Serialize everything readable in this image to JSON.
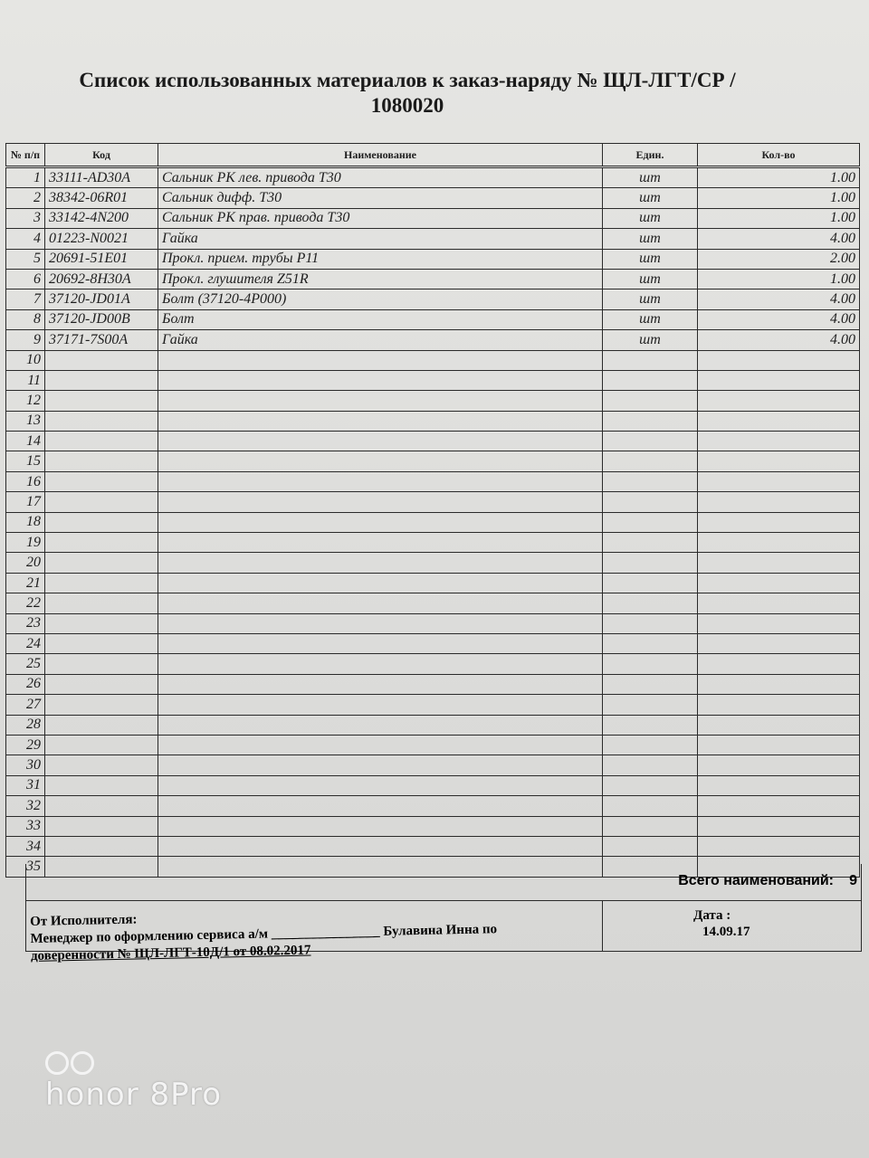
{
  "title_line1": "Список использованных материалов к заказ-наряду № ЩЛ-ЛГТ/СР /",
  "title_line2": "1080020",
  "columns": [
    "№ п/п",
    "Код",
    "Наименование",
    "Един.",
    "Кол-во"
  ],
  "items": [
    {
      "n": "1",
      "code": "33111-AD30A",
      "name": "Сальник РК лев. привода Т30",
      "unit": "шт",
      "qty": "1.00"
    },
    {
      "n": "2",
      "code": "38342-06R01",
      "name": "Сальник дифф. Т30",
      "unit": "шт",
      "qty": "1.00"
    },
    {
      "n": "3",
      "code": "33142-4N200",
      "name": "Сальник РК прав. привода Т30",
      "unit": "шт",
      "qty": "1.00"
    },
    {
      "n": "4",
      "code": "01223-N0021",
      "name": "Гайка",
      "unit": "шт",
      "qty": "4.00"
    },
    {
      "n": "5",
      "code": "20691-51E01",
      "name": "Прокл. прием. трубы Р11",
      "unit": "шт",
      "qty": "2.00"
    },
    {
      "n": "6",
      "code": "20692-8H30A",
      "name": "Прокл. глушителя Z51R",
      "unit": "шт",
      "qty": "1.00"
    },
    {
      "n": "7",
      "code": "37120-JD01A",
      "name": "Болт (37120-4Р000)",
      "unit": "шт",
      "qty": "4.00"
    },
    {
      "n": "8",
      "code": "37120-JD00B",
      "name": "Болт",
      "unit": "шт",
      "qty": "4.00"
    },
    {
      "n": "9",
      "code": "37171-7S00A",
      "name": "Гайка",
      "unit": "шт",
      "qty": "4.00"
    },
    {
      "n": "10"
    },
    {
      "n": "11"
    },
    {
      "n": "12"
    },
    {
      "n": "13"
    },
    {
      "n": "14"
    },
    {
      "n": "15"
    },
    {
      "n": "16"
    },
    {
      "n": "17"
    },
    {
      "n": "18"
    },
    {
      "n": "19"
    },
    {
      "n": "20"
    },
    {
      "n": "21"
    },
    {
      "n": "22"
    },
    {
      "n": "23"
    },
    {
      "n": "24"
    },
    {
      "n": "25"
    },
    {
      "n": "26"
    },
    {
      "n": "27"
    },
    {
      "n": "28"
    },
    {
      "n": "29"
    },
    {
      "n": "30"
    },
    {
      "n": "31"
    },
    {
      "n": "32"
    },
    {
      "n": "33"
    },
    {
      "n": "34"
    },
    {
      "n": "35"
    }
  ],
  "total_label": "Всего наименований:",
  "total_value": "9",
  "footer": {
    "line1": "От Исполнителя:",
    "line2": "Менеджер по оформлению сервиса а/м ________________ Булавина Инна по",
    "line3": "доверенности № ЩЛ-ЛГТ-10Д/1 от 08.02.2017",
    "date_label": "Дата :",
    "date_value": "14.09.17"
  },
  "watermark": "honor 8Pro"
}
